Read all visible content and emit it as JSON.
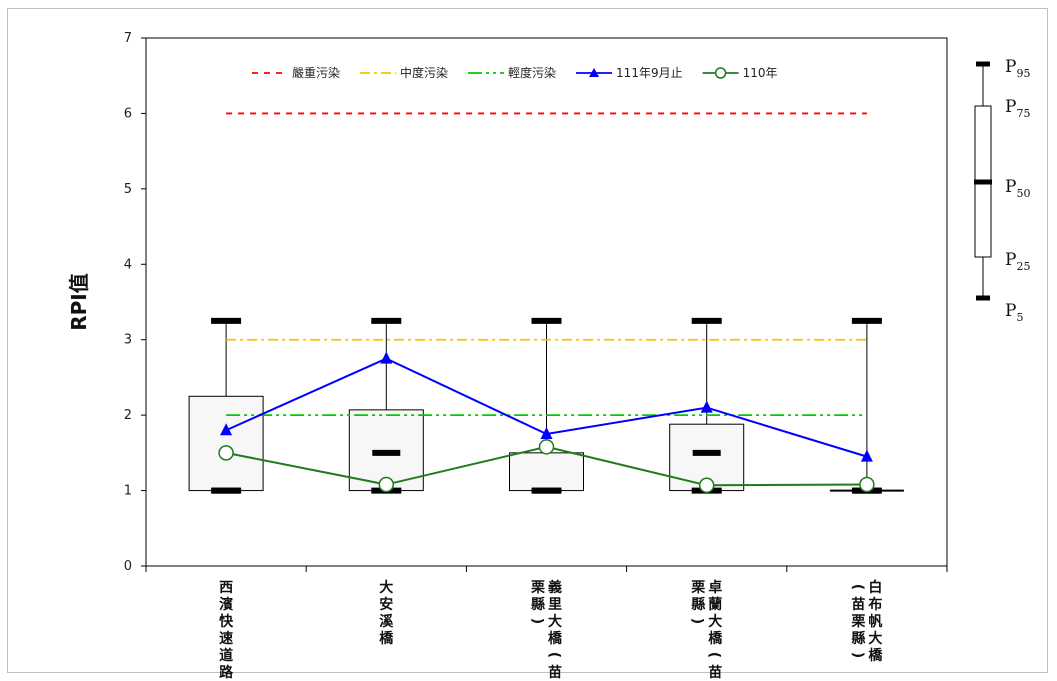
{
  "chart_data": {
    "type": "box",
    "ylabel": "RPI值",
    "ylim": [
      0,
      7
    ],
    "yticks": [
      "0",
      "1",
      "2",
      "3",
      "4",
      "5",
      "6",
      "7"
    ],
    "categories": [
      "西濱快速道路",
      "大安溪橋",
      "義里大橋(苗栗縣)",
      "卓蘭大橋(苗栗縣)",
      "白布帆大橋(苗栗縣)"
    ],
    "category_lines": [
      [
        "西濱快速道路"
      ],
      [
        "大安溪橋"
      ],
      [
        "義里大橋(苗",
        "栗縣)"
      ],
      [
        "卓蘭大橋(苗",
        "栗縣)"
      ],
      [
        "白布帆大橋",
        "(苗栗縣)"
      ]
    ],
    "boxes": [
      {
        "p5": 1.0,
        "p25": 1.0,
        "p50": 1.0,
        "p75": 2.25,
        "p95": 3.25
      },
      {
        "p5": 1.0,
        "p25": 1.0,
        "p50": 1.5,
        "p75": 2.07,
        "p95": 3.25
      },
      {
        "p5": 1.0,
        "p25": 1.0,
        "p50": 1.0,
        "p75": 1.5,
        "p95": 3.25
      },
      {
        "p5": 1.0,
        "p25": 1.0,
        "p50": 1.5,
        "p75": 1.88,
        "p95": 3.25
      },
      {
        "p5": 1.0,
        "p25": 1.0,
        "p50": 1.0,
        "p75": 1.0,
        "p95": 3.25
      }
    ],
    "reference_lines": [
      {
        "name": "嚴重污染",
        "value": 6,
        "color": "#ff0000",
        "style": "dashed"
      },
      {
        "name": "中度污染",
        "value": 3,
        "color": "#ffc000",
        "style": "dashdot"
      },
      {
        "name": "輕度污染",
        "value": 2,
        "color": "#00cc00",
        "style": "dashdotdot"
      }
    ],
    "series": [
      {
        "name": "111年9月止",
        "values": [
          1.8,
          2.75,
          1.75,
          2.1,
          1.45
        ],
        "color": "#0000ff",
        "marker": "triangle"
      },
      {
        "name": "110年",
        "values": [
          1.5,
          1.08,
          1.58,
          1.07,
          1.08
        ],
        "color": "#1e7b1e",
        "marker": "circle"
      }
    ],
    "legend_position": "top"
  },
  "key": {
    "labels": [
      {
        "main": "P",
        "sub": "95"
      },
      {
        "main": "P",
        "sub": "75"
      },
      {
        "main": "P",
        "sub": "50"
      },
      {
        "main": "P",
        "sub": "25"
      },
      {
        "main": "P",
        "sub": "5"
      }
    ]
  }
}
